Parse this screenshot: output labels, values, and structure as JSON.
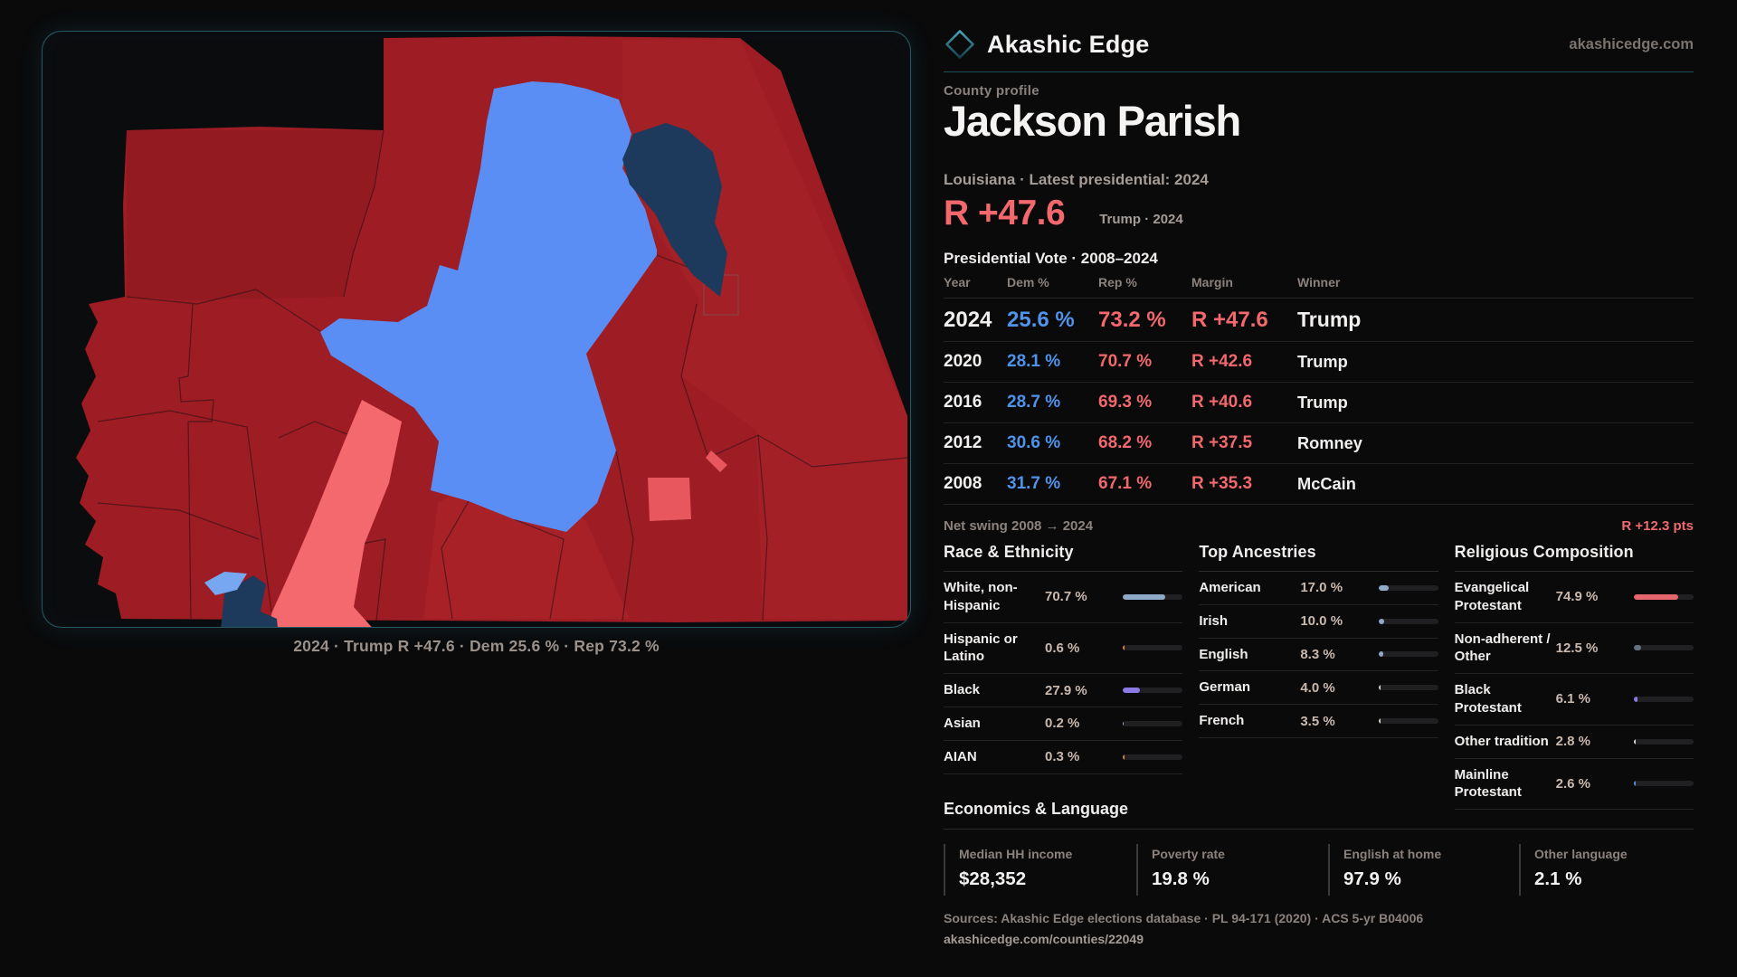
{
  "brand": {
    "name": "Akashic Edge",
    "domain": "akashicedge.com",
    "logo": "diamond-outline"
  },
  "profile": {
    "kicker": "County profile",
    "county": "Jackson Parish",
    "meta": "Louisiana · Latest presidential: 2024",
    "headline_margin": "R +47.6",
    "headline_context": "Trump · 2024"
  },
  "vote_history": {
    "title": "Presidential Vote · 2008–2024",
    "columns": [
      "Year",
      "Dem %",
      "Rep %",
      "Margin",
      "Winner"
    ],
    "rows": [
      {
        "year": "2024",
        "dem": "25.6 %",
        "rep": "73.2 %",
        "margin": "R +47.6",
        "winner": "Trump"
      },
      {
        "year": "2020",
        "dem": "28.1 %",
        "rep": "70.7 %",
        "margin": "R +42.6",
        "winner": "Trump"
      },
      {
        "year": "2016",
        "dem": "28.7 %",
        "rep": "69.3 %",
        "margin": "R +40.6",
        "winner": "Trump"
      },
      {
        "year": "2012",
        "dem": "30.6 %",
        "rep": "68.2 %",
        "margin": "R +37.5",
        "winner": "Romney"
      },
      {
        "year": "2008",
        "dem": "31.7 %",
        "rep": "67.1 %",
        "margin": "R +35.3",
        "winner": "McCain"
      }
    ]
  },
  "net_swing": {
    "label": "Net swing 2008 → 2024",
    "value": "R +12.3 pts"
  },
  "race": {
    "title": "Race & Ethnicity",
    "rows": [
      {
        "label": "White, non-Hispanic",
        "value": "70.7 %",
        "pct": 70.7,
        "color": "#8fa9c9"
      },
      {
        "label": "Hispanic or Latino",
        "value": "0.6 %",
        "pct": 0.6,
        "color": "#d08a3e"
      },
      {
        "label": "Black",
        "value": "27.9 %",
        "pct": 27.9,
        "color": "#8b7ae3"
      },
      {
        "label": "Asian",
        "value": "0.2 %",
        "pct": 0.2,
        "color": "#8fa9c9"
      },
      {
        "label": "AIAN",
        "value": "0.3 %",
        "pct": 0.3,
        "color": "#d08a3e"
      }
    ]
  },
  "ancestries": {
    "title": "Top Ancestries",
    "rows": [
      {
        "label": "American",
        "value": "17.0 %",
        "pct": 17.0,
        "color": "#8fa9c9"
      },
      {
        "label": "Irish",
        "value": "10.0 %",
        "pct": 10.0,
        "color": "#8fa9c9"
      },
      {
        "label": "English",
        "value": "8.3 %",
        "pct": 8.3,
        "color": "#8fa9c9"
      },
      {
        "label": "German",
        "value": "4.0 %",
        "pct": 4.0,
        "color": "#d9d3cd"
      },
      {
        "label": "French",
        "value": "3.5 %",
        "pct": 3.5,
        "color": "#d9d3cd"
      }
    ]
  },
  "religion": {
    "title": "Religious Composition",
    "rows": [
      {
        "label": "Evangelical Protestant",
        "value": "74.9 %",
        "pct": 74.9,
        "color": "#e5666c"
      },
      {
        "label": "Non-adherent / Other",
        "value": "12.5 %",
        "pct": 12.5,
        "color": "#647180"
      },
      {
        "label": "Black Protestant",
        "value": "6.1 %",
        "pct": 6.1,
        "color": "#8b7ae3"
      },
      {
        "label": "Other tradition",
        "value": "2.8 %",
        "pct": 2.8,
        "color": "#d9d3cd"
      },
      {
        "label": "Mainline Protestant",
        "value": "2.6 %",
        "pct": 2.6,
        "color": "#4d94e8"
      }
    ]
  },
  "economics": {
    "title": "Economics & Language",
    "stats": [
      {
        "label": "Median HH income",
        "value": "$28,352"
      },
      {
        "label": "Poverty rate",
        "value": "19.8 %"
      },
      {
        "label": "English at home",
        "value": "97.9 %"
      },
      {
        "label": "Other language",
        "value": "2.1 %"
      }
    ]
  },
  "footer": {
    "sources": "Sources: Akashic Edge elections database · PL 94-171 (2020) · ACS 5-yr B04006",
    "permalink": "akashicedge.com/counties/22049"
  },
  "map": {
    "caption": "2024 · Trump R +47.6 · Dem 25.6 % · Rep 73.2 %",
    "colors": {
      "strong_rep": "#9e1c23",
      "lean_rep": "#f4696e",
      "lean_rep_alt": "#e8575e",
      "soft_pink": "#f59da2",
      "dem": "#5a8ef4",
      "dem_light": "#77a7f0",
      "strong_dem": "#1d3a5c"
    }
  },
  "accents": {
    "rep": "#f2686d",
    "dem": "#4f93ea"
  }
}
